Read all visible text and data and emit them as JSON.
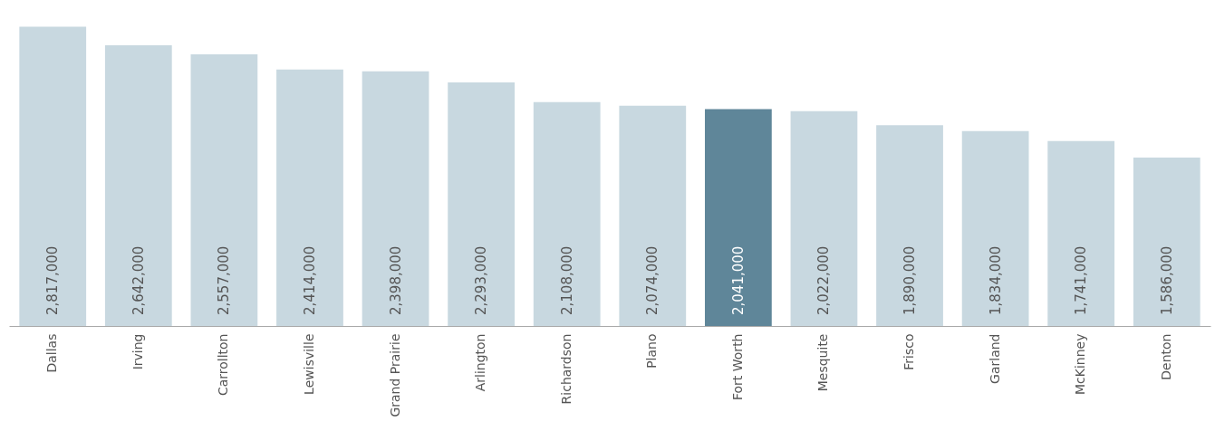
{
  "chart_data": {
    "type": "bar",
    "categories": [
      "Dallas",
      "Irving",
      "Carrollton",
      "Lewisville",
      "Grand Prairie",
      "Arlington",
      "Richardson",
      "Plano",
      "Fort Worth",
      "Mesquite",
      "Frisco",
      "Garland",
      "McKinney",
      "Denton"
    ],
    "values": [
      2817000,
      2642000,
      2557000,
      2414000,
      2398000,
      2293000,
      2108000,
      2074000,
      2041000,
      2022000,
      1890000,
      1834000,
      1741000,
      1586000
    ],
    "colors": [
      "#c8d8e0",
      "#c8d8e0",
      "#c8d8e0",
      "#c8d8e0",
      "#c8d8e0",
      "#c8d8e0",
      "#c8d8e0",
      "#c8d8e0",
      "#5f8699",
      "#c8d8e0",
      "#c8d8e0",
      "#c8d8e0",
      "#c8d8e0",
      "#c8d8e0"
    ],
    "value_labels": [
      "2,817,000",
      "2,642,000",
      "2,557,000",
      "2,414,000",
      "2,398,000",
      "2,293,000",
      "2,108,000",
      "2,074,000",
      "2,041,000",
      "2,022,000",
      "1,890,000",
      "1,834,000",
      "1,741,000",
      "1,586,000"
    ],
    "grid": false
  }
}
